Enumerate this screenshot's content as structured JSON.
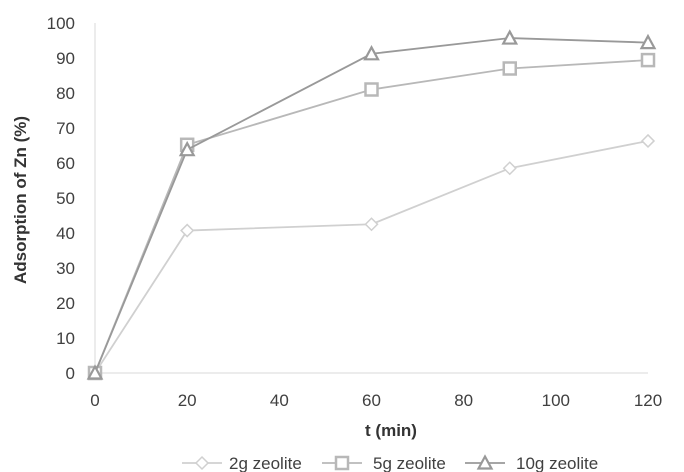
{
  "chart_data": {
    "type": "line",
    "title": "",
    "xlabel": "t (min)",
    "ylabel": "Adsorption of Zn (%)",
    "xlim": [
      0,
      120
    ],
    "ylim": [
      0,
      100
    ],
    "x_ticks": [
      0,
      20,
      40,
      60,
      80,
      100,
      120
    ],
    "y_ticks": [
      0,
      10,
      20,
      30,
      40,
      50,
      60,
      70,
      80,
      90,
      100
    ],
    "grid": false,
    "legend_position": "bottom",
    "series": [
      {
        "name": "2g zeolite",
        "marker": "diamond",
        "color": "#d0d0d0",
        "x": [
          0,
          20,
          60,
          90,
          120
        ],
        "y": [
          0,
          40.7,
          42.5,
          58.5,
          66.3
        ]
      },
      {
        "name": "5g zeolite",
        "marker": "square",
        "color": "#b8b8b8",
        "x": [
          0,
          20,
          60,
          90,
          120
        ],
        "y": [
          0,
          65.2,
          81.0,
          87.0,
          89.4
        ]
      },
      {
        "name": "10g zeolite",
        "marker": "triangle",
        "color": "#999999",
        "x": [
          0,
          20,
          60,
          90,
          120
        ],
        "y": [
          0,
          63.8,
          91.2,
          95.7,
          94.4
        ]
      }
    ]
  }
}
